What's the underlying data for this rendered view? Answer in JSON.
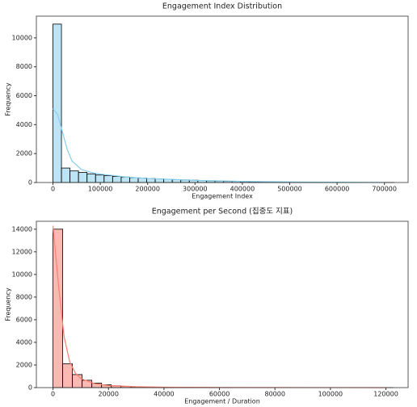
{
  "chart_data": [
    {
      "type": "histogram",
      "title": "Engagement Index Distribution",
      "x_label": "Engagement Index",
      "y_label": "Frequency",
      "color": "#87ceeb",
      "bins": [
        0,
        18000,
        36000,
        54000,
        72000,
        90000,
        108000,
        126000,
        144000,
        162000,
        180000,
        198000,
        216000,
        234000,
        252000,
        270000,
        288000,
        306000,
        324000,
        342000,
        360000,
        378000,
        396000,
        414000,
        432000,
        450000,
        468000,
        486000,
        504000,
        522000,
        540000,
        558000,
        576000,
        594000,
        612000,
        630000,
        648000,
        666000,
        684000,
        702000,
        720000
      ],
      "values": [
        10950,
        1000,
        800,
        700,
        600,
        520,
        470,
        420,
        380,
        340,
        310,
        280,
        250,
        220,
        200,
        180,
        160,
        140,
        120,
        100,
        90,
        80,
        70,
        60,
        50,
        40,
        35,
        30,
        25,
        20,
        18,
        15,
        12,
        10,
        8,
        6,
        5,
        4,
        3,
        2
      ],
      "kde": {
        "x": [
          0,
          10000,
          20000,
          30000,
          40000,
          60000,
          80000,
          100000,
          150000,
          200000,
          300000,
          400000,
          500000,
          600000,
          700000
        ],
        "y": [
          5100,
          4700,
          3500,
          2300,
          1500,
          900,
          700,
          580,
          400,
          280,
          150,
          80,
          40,
          20,
          10
        ]
      },
      "xlim": [
        -35000,
        750000
      ],
      "xticks": [
        0,
        100000,
        200000,
        300000,
        400000,
        500000,
        600000,
        700000
      ],
      "ylim": [
        0,
        11500
      ],
      "yticks": [
        0,
        2000,
        4000,
        6000,
        8000,
        10000
      ]
    },
    {
      "type": "histogram",
      "title": "Engagement per Second (집중도 지표)",
      "x_label": "Engagement / Duration",
      "y_label": "Frequency",
      "color": "#fa8072",
      "bins": [
        0,
        3500,
        7000,
        10500,
        14000,
        17500,
        21000,
        24500,
        28000,
        31500,
        35000,
        38500,
        42000,
        45500,
        49000,
        52500,
        56000,
        59500,
        63000,
        66500,
        70000,
        73500,
        77000,
        80500,
        84000,
        87500,
        91000,
        94500,
        98000,
        101500,
        105000,
        108500,
        112000,
        115500,
        119000,
        122500
      ],
      "values": [
        14000,
        2100,
        1150,
        650,
        400,
        250,
        160,
        110,
        80,
        60,
        45,
        35,
        30,
        25,
        20,
        18,
        15,
        12,
        10,
        9,
        8,
        7,
        6,
        5,
        5,
        4,
        4,
        3,
        3,
        2,
        2,
        2,
        1,
        1,
        1
      ],
      "kde": {
        "x": [
          0,
          2000,
          4000,
          6000,
          8000,
          10000,
          15000,
          20000,
          30000,
          40000,
          60000,
          80000,
          100000,
          120000
        ],
        "y": [
          14300,
          9000,
          4500,
          2300,
          1300,
          800,
          350,
          180,
          80,
          40,
          15,
          8,
          4,
          2
        ]
      },
      "xlim": [
        -6000,
        128000
      ],
      "xticks": [
        0,
        20000,
        40000,
        60000,
        80000,
        100000,
        120000
      ],
      "ylim": [
        0,
        14700
      ],
      "yticks": [
        0,
        2000,
        4000,
        6000,
        8000,
        10000,
        12000,
        14000
      ]
    }
  ]
}
